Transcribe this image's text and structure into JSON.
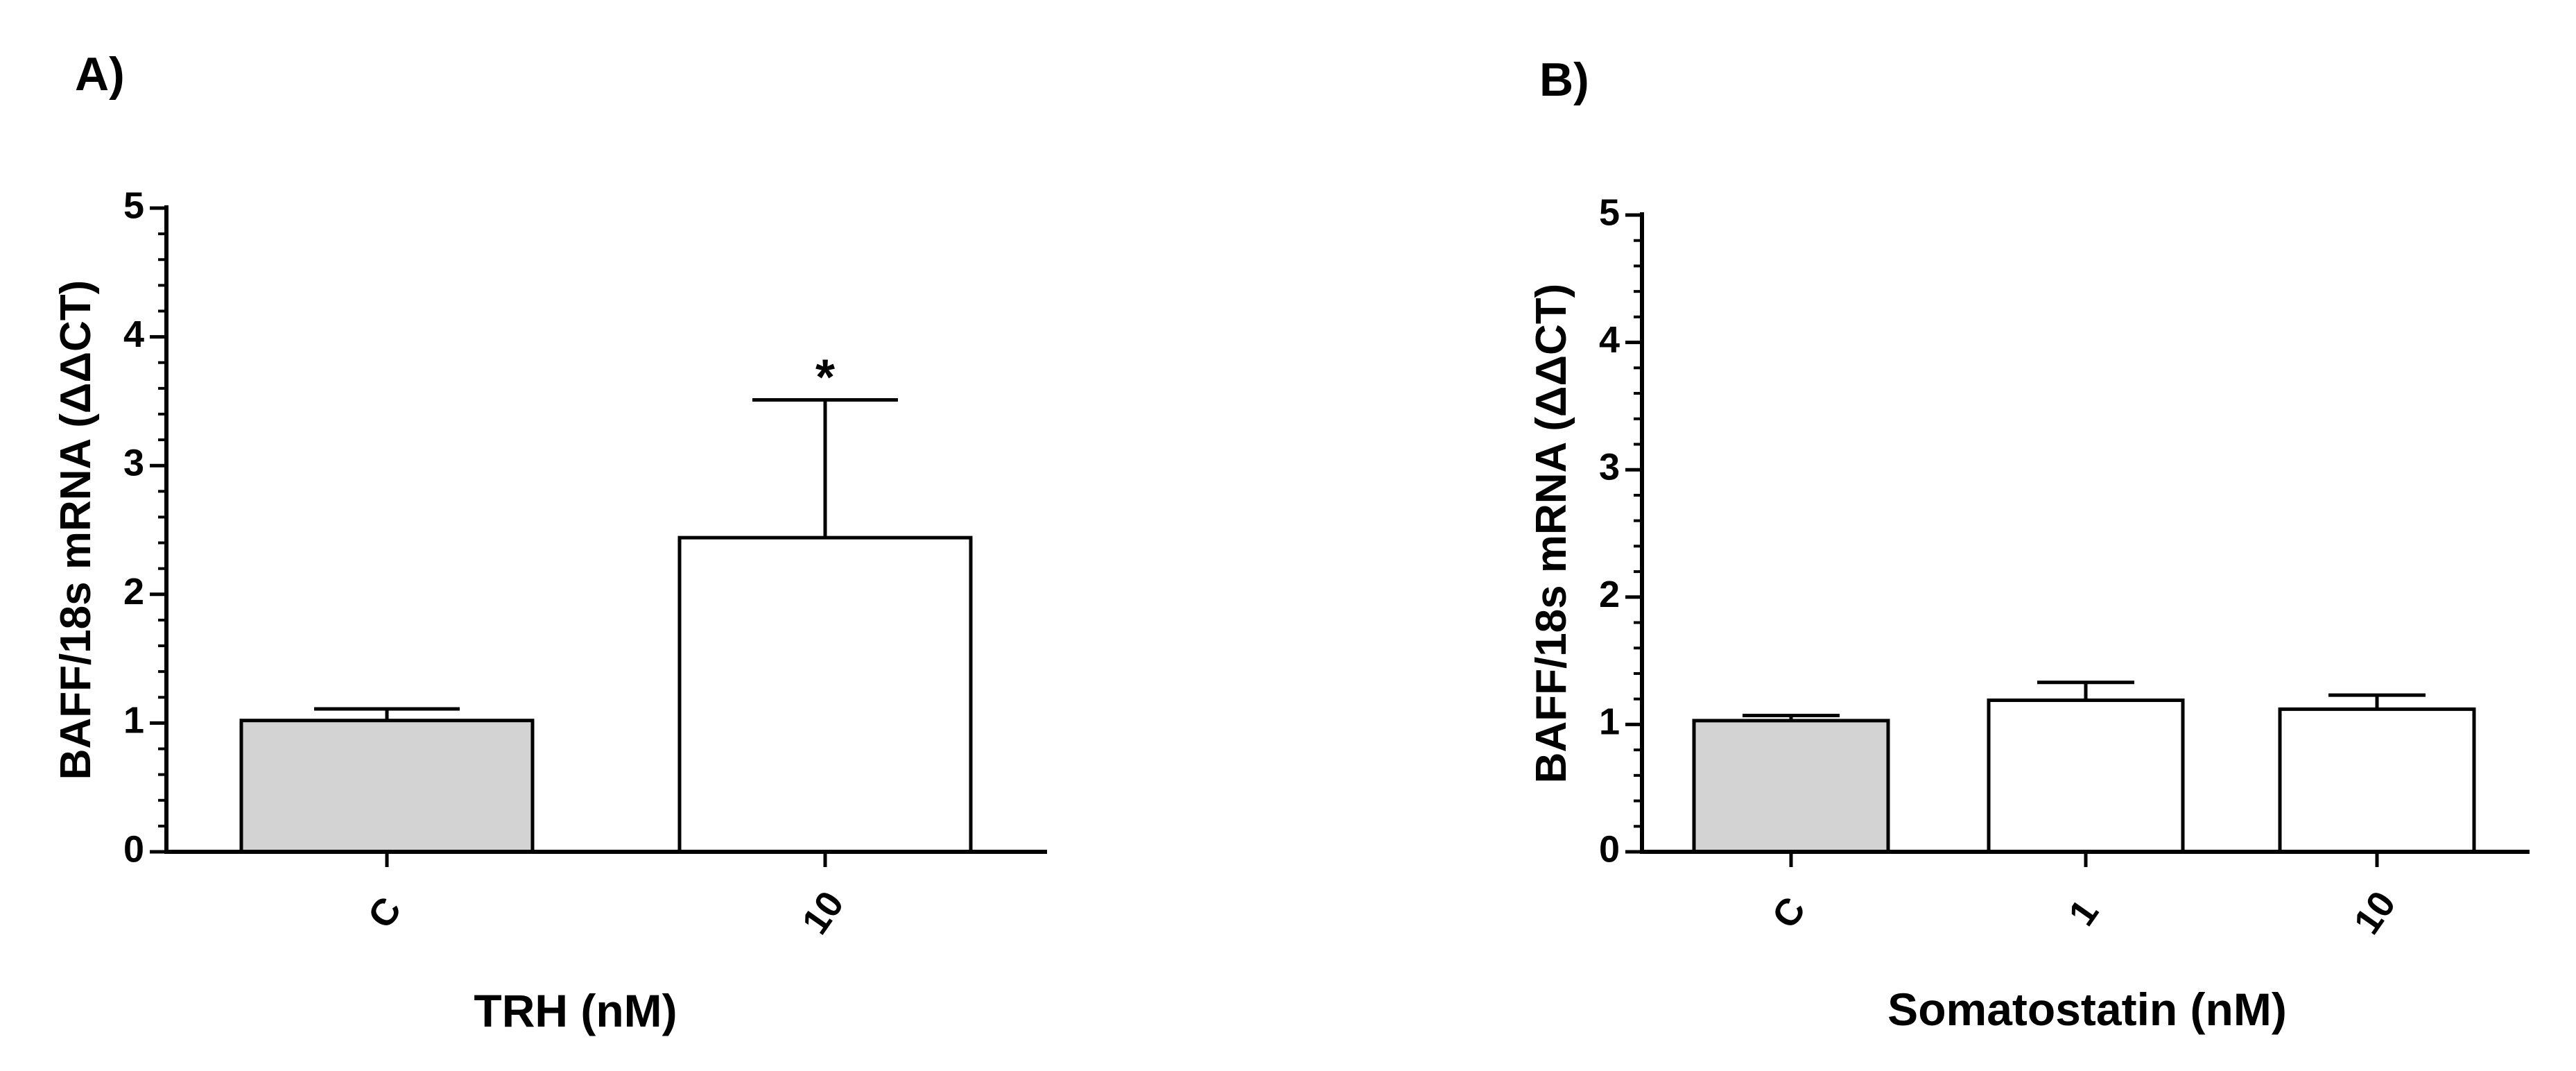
{
  "panels": {
    "a": {
      "letter": "A)"
    },
    "b": {
      "letter": "B)"
    }
  },
  "chart_data": [
    {
      "type": "bar",
      "panel": "A)",
      "title": "",
      "xlabel": "TRH (nM)",
      "ylabel": "BAFF/18s mRNA (ΔΔCT)",
      "ylim": [
        0,
        5
      ],
      "yticks": [
        "0",
        "1",
        "2",
        "3",
        "4",
        "5"
      ],
      "grid": false,
      "categories": [
        "C",
        "10"
      ],
      "values": [
        1.02,
        2.44
      ],
      "errors": [
        0.09,
        1.07
      ],
      "bar_colors": [
        "#d3d3d3",
        "#ffffff"
      ],
      "annotations": [
        "",
        "*"
      ]
    },
    {
      "type": "bar",
      "panel": "B)",
      "title": "",
      "xlabel": "Somatostatin (nM)",
      "ylabel": "BAFF/18s mRNA (ΔΔCT)",
      "ylim": [
        0,
        5
      ],
      "yticks": [
        "0",
        "1",
        "2",
        "3",
        "4",
        "5"
      ],
      "grid": false,
      "categories": [
        "C",
        "1",
        "10"
      ],
      "values": [
        1.03,
        1.19,
        1.12
      ],
      "errors": [
        0.04,
        0.14,
        0.11
      ],
      "bar_colors": [
        "#d3d3d3",
        "#ffffff",
        "#ffffff"
      ],
      "annotations": [
        "",
        "",
        ""
      ]
    }
  ]
}
